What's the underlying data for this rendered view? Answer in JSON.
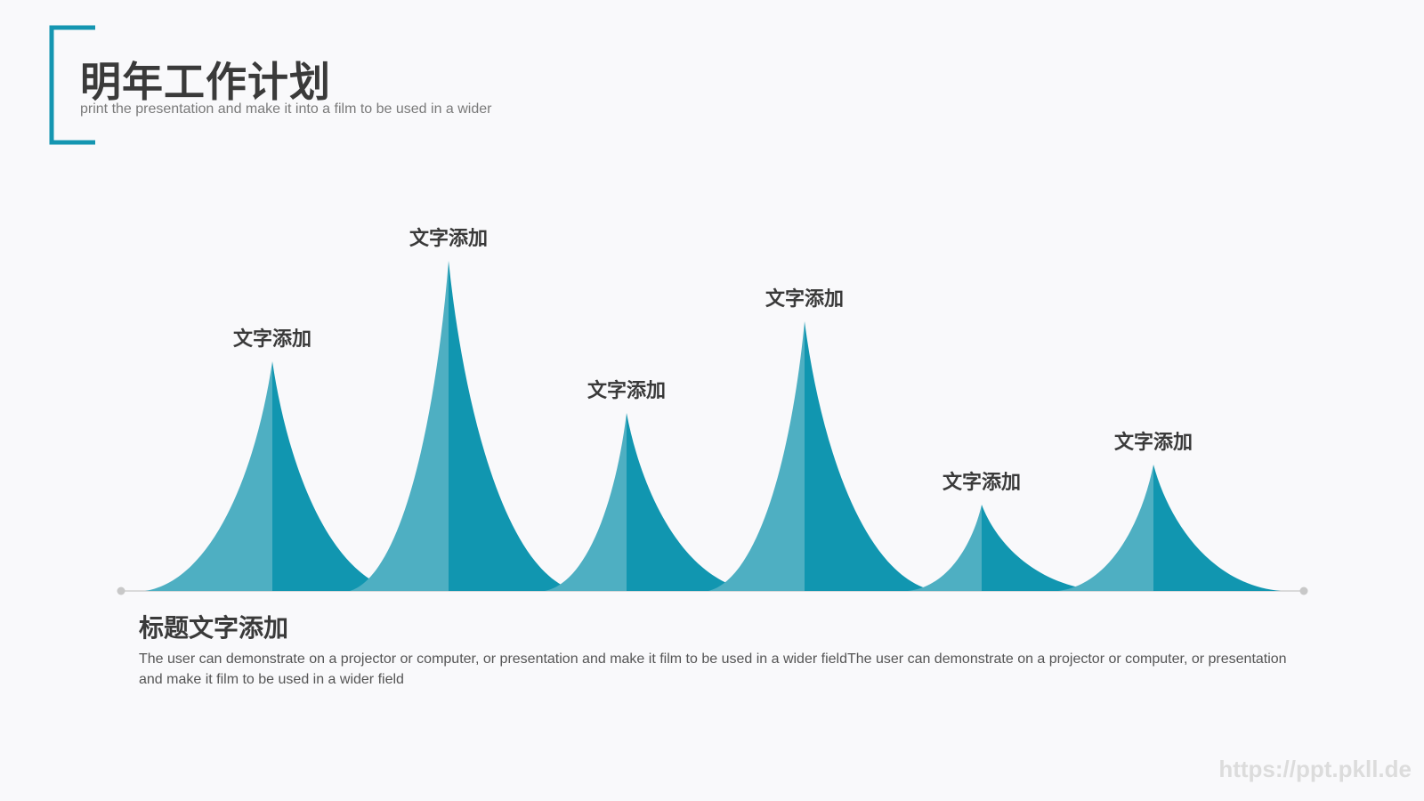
{
  "header": {
    "title": "明年工作计划",
    "subtitle": "print the presentation and make it into a film to be used in a wider"
  },
  "peaks": [
    {
      "label": "文字添加"
    },
    {
      "label": "文字添加"
    },
    {
      "label": "文字添加"
    },
    {
      "label": "文字添加"
    },
    {
      "label": "文字添加"
    },
    {
      "label": "文字添加"
    }
  ],
  "section": {
    "heading": "标题文字添加",
    "text": "The user can demonstrate on a projector or computer, or presentation and make it film to be used in a wider fieldThe user can demonstrate on a projector or computer, or presentation and make it film to be used in a wider field"
  },
  "watermark": "https://ppt.pkll.de"
}
